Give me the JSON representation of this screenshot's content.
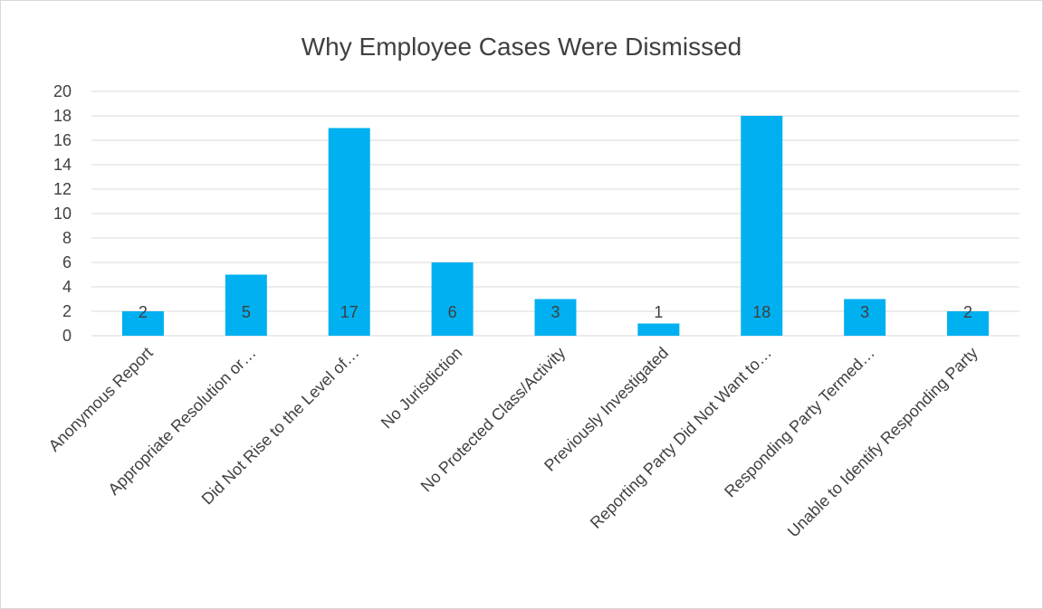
{
  "chart_data": {
    "type": "bar",
    "title": "Why Employee Cases Were Dismissed",
    "categories": [
      "Anonymous Report",
      "Appropriate Resolution or…",
      "Did Not Rise to the Level of…",
      "No Jurisdiction",
      "No Protected Class/Activity",
      "Previously Investigated",
      "Reporting Party Did Not Want to…",
      "Responding Party Termed…",
      "Unable to Identify Responding Party"
    ],
    "values": [
      2,
      5,
      17,
      6,
      3,
      1,
      18,
      3,
      2
    ],
    "data_labels": [
      "2",
      "5",
      "17",
      "6",
      "3",
      "1",
      "18",
      "3",
      "2"
    ],
    "y_ticks": [
      "0",
      "2",
      "4",
      "6",
      "8",
      "10",
      "12",
      "14",
      "16",
      "18",
      "20"
    ],
    "ylim": [
      0,
      20
    ],
    "grid": true,
    "legend": "none",
    "bar_color": "#00b0f0",
    "gridline_color": "#d9d9d9",
    "text_color": "#404040"
  }
}
